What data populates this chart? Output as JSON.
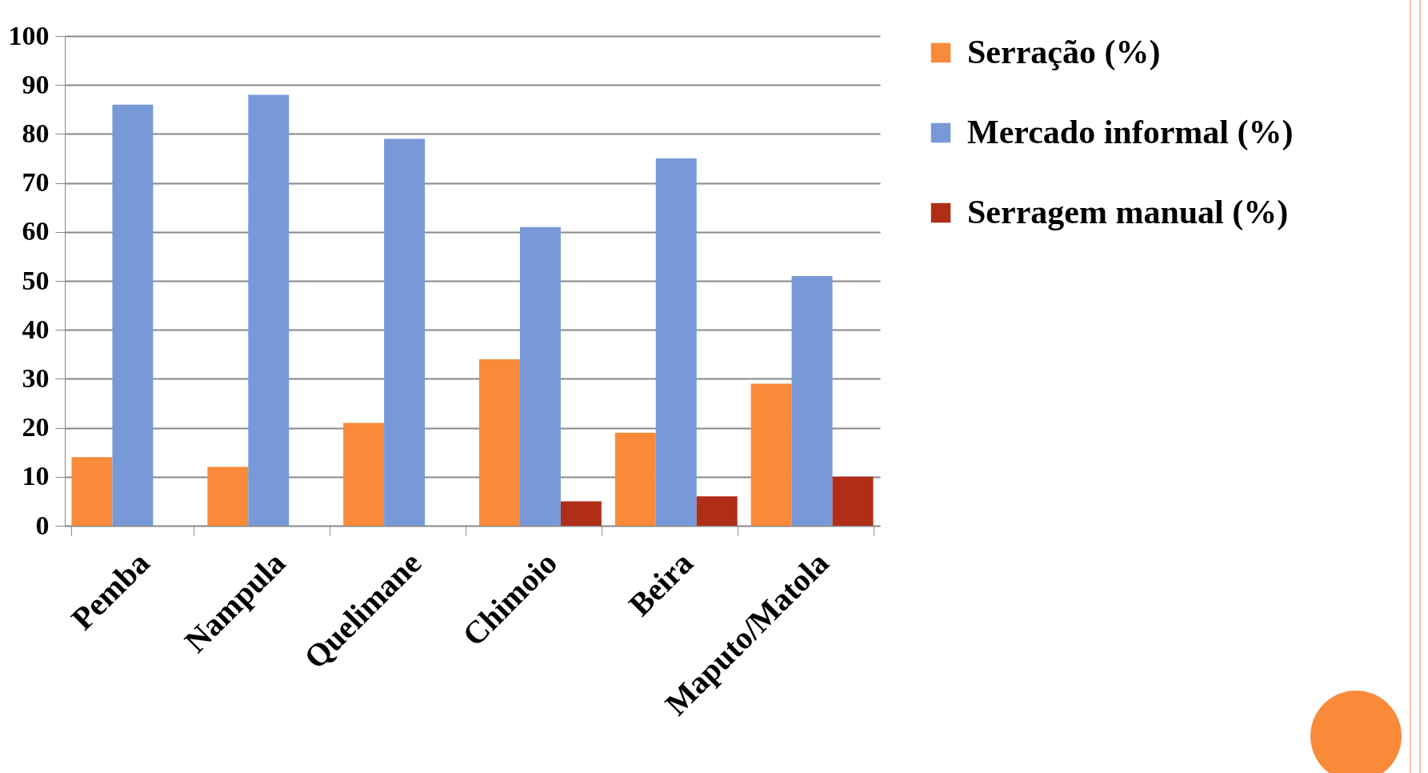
{
  "chart_data": {
    "type": "bar",
    "categories": [
      "Pemba",
      "Nampula",
      "Quelimane",
      "Chimoio",
      "Beira",
      "Maputo/Matola"
    ],
    "series": [
      {
        "name": "Serração (%)",
        "color": "#f98a3a",
        "values": [
          14,
          12,
          21,
          34,
          19,
          29
        ]
      },
      {
        "name": "Mercado informal (%)",
        "color": "#7899d7",
        "values": [
          86,
          88,
          79,
          61,
          75,
          51
        ]
      },
      {
        "name": "Serragem manual (%)",
        "color": "#b02d17",
        "values": [
          null,
          null,
          null,
          5,
          6,
          10
        ]
      }
    ],
    "ylim": [
      0,
      100
    ],
    "yticks": [
      0,
      10,
      20,
      30,
      40,
      50,
      60,
      70,
      80,
      90,
      100
    ],
    "grid": "y",
    "legend": "right"
  }
}
